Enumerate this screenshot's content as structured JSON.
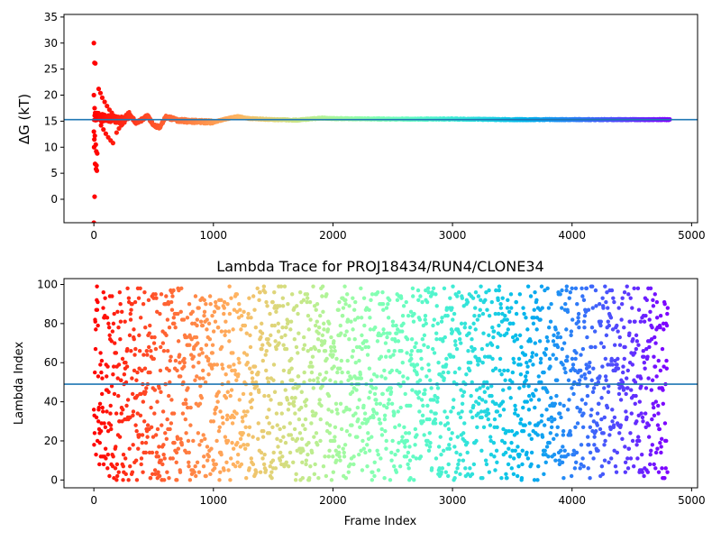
{
  "figure": {
    "top": {
      "ylabel": "ΔG (kT)",
      "xticks": [
        "0",
        "1000",
        "2000",
        "3000",
        "4000",
        "5000"
      ],
      "yticks": [
        "0",
        "5",
        "10",
        "15",
        "20",
        "25",
        "30",
        "35"
      ]
    },
    "bottom": {
      "title": "Lambda Trace for PROJ18434/RUN4/CLONE34",
      "xlabel": "Frame Index",
      "ylabel": "Lambda Index",
      "xticks": [
        "0",
        "1000",
        "2000",
        "3000",
        "4000",
        "5000"
      ],
      "yticks": [
        "0",
        "20",
        "40",
        "60",
        "80",
        "100"
      ]
    }
  },
  "chart_data": [
    {
      "type": "scatter",
      "title": "",
      "xlabel": "",
      "ylabel": "ΔG (kT)",
      "xlim": [
        -250,
        5050
      ],
      "ylim": [
        -4.5,
        35.5
      ],
      "x_range": [
        0,
        4820
      ],
      "colormap": "rainbow (red at start → violet at end)",
      "reference_line": {
        "orientation": "horizontal",
        "y": 15.3,
        "color": "#1f77b4"
      },
      "grid": false,
      "series": [
        {
          "early_points": [
            [
              0,
              30.0
            ],
            [
              5,
              26.2
            ],
            [
              12,
              26.1
            ],
            [
              0,
              20.0
            ],
            [
              6,
              17.5
            ],
            [
              10,
              16.0
            ],
            [
              14,
              15.2
            ],
            [
              0,
              13.0
            ],
            [
              8,
              12.2
            ],
            [
              4,
              11.5
            ],
            [
              16,
              10.5
            ],
            [
              2,
              10.0
            ],
            [
              20,
              9.2
            ],
            [
              28,
              8.8
            ],
            [
              10,
              6.8
            ],
            [
              22,
              6.5
            ],
            [
              18,
              5.8
            ],
            [
              25,
              5.5
            ],
            [
              6,
              0.5
            ],
            [
              0,
              -4.5
            ],
            [
              40,
              21.2
            ],
            [
              55,
              20.4
            ],
            [
              70,
              19.5
            ],
            [
              90,
              18.7
            ],
            [
              110,
              17.9
            ],
            [
              130,
              17.2
            ],
            [
              150,
              16.6
            ],
            [
              170,
              16.0
            ],
            [
              60,
              14.2
            ],
            [
              80,
              13.4
            ],
            [
              100,
              12.6
            ],
            [
              120,
              11.9
            ],
            [
              140,
              11.3
            ],
            [
              160,
              10.8
            ],
            [
              190,
              12.8
            ],
            [
              210,
              13.6
            ],
            [
              230,
              14.2
            ],
            [
              250,
              14.9
            ]
          ],
          "trend": [
            [
              0,
              16.0
            ],
            [
              100,
              15.5
            ],
            [
              200,
              15.3
            ],
            [
              250,
              15.0
            ],
            [
              300,
              16.3
            ],
            [
              350,
              14.8
            ],
            [
              400,
              15.2
            ],
            [
              450,
              16.0
            ],
            [
              500,
              14.2
            ],
            [
              550,
              13.8
            ],
            [
              600,
              15.8
            ],
            [
              700,
              15.2
            ],
            [
              800,
              15.0
            ],
            [
              900,
              14.9
            ],
            [
              1000,
              14.8
            ],
            [
              1100,
              15.4
            ],
            [
              1200,
              15.9
            ],
            [
              1300,
              15.5
            ],
            [
              1500,
              15.3
            ],
            [
              1700,
              15.2
            ],
            [
              1900,
              15.6
            ],
            [
              2000,
              15.5
            ],
            [
              2500,
              15.4
            ],
            [
              3000,
              15.4
            ],
            [
              3500,
              15.3
            ],
            [
              4000,
              15.3
            ],
            [
              4500,
              15.3
            ],
            [
              4820,
              15.3
            ]
          ]
        }
      ]
    },
    {
      "type": "scatter",
      "title": "Lambda Trace for PROJ18434/RUN4/CLONE34",
      "xlabel": "Frame Index",
      "ylabel": "Lambda Index",
      "xlim": [
        -250,
        5050
      ],
      "ylim": [
        -4,
        103
      ],
      "x_range": [
        0,
        4800
      ],
      "y_range": [
        0,
        99
      ],
      "point_count": 2400,
      "colormap": "rainbow (red at start → violet at end)",
      "reference_line": {
        "orientation": "horizontal",
        "y": 49,
        "color": "#1f77b4"
      },
      "grid": false
    }
  ]
}
